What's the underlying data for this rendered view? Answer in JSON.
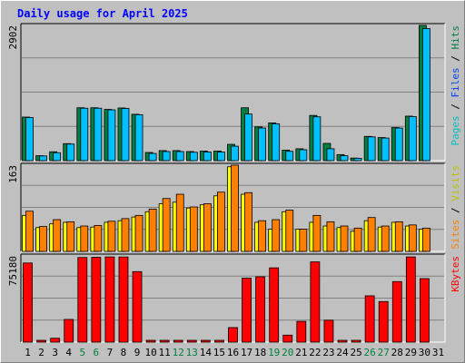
{
  "chart_data": {
    "type": "bar",
    "title": "Daily usage for April 2025",
    "categories": [
      "1",
      "2",
      "3",
      "4",
      "5",
      "6",
      "7",
      "8",
      "9",
      "10",
      "11",
      "12",
      "13",
      "14",
      "15",
      "16",
      "17",
      "18",
      "19",
      "20",
      "21",
      "22",
      "23",
      "24",
      "25",
      "26",
      "27",
      "28",
      "29",
      "30",
      "31"
    ],
    "weekend_days": [
      "5",
      "6",
      "12",
      "13",
      "19",
      "20",
      "26",
      "27"
    ],
    "colors": {
      "background": "#c0c0c0",
      "panel": "#c0c0c0",
      "title": "#0000ff",
      "hits": "#008040",
      "files": "#00c0ff",
      "pages": "#00ffff",
      "visits": "#ff8000",
      "sites": "#ffff00",
      "kbytes": "#ff0000",
      "tick_normal": "#000000",
      "tick_weekend": "#008040"
    },
    "panels": [
      {
        "id": "hits-files-pages",
        "max_label": "2902",
        "ylim": [
          0,
          2902
        ],
        "right_label": [
          {
            "text": "Pages",
            "color": "#00c0c0"
          },
          {
            "text": " / ",
            "color": "#000000"
          },
          {
            "text": "Files",
            "color": "#0040ff"
          },
          {
            "text": " / ",
            "color": "#000000"
          },
          {
            "text": "Hits",
            "color": "#008040"
          }
        ],
        "series": [
          {
            "name": "Hits",
            "color": "#008040",
            "values": [
              935,
              105,
              190,
              365,
              1135,
              1135,
              1100,
              1130,
              995,
              175,
              215,
              215,
              195,
              205,
              205,
              350,
              1135,
              725,
              810,
              225,
              255,
              970,
              370,
              130,
              55,
              520,
              495,
              710,
              955,
              2902,
              0
            ]
          },
          {
            "name": "Files",
            "color": "#00c0ff",
            "values": [
              925,
              100,
              170,
              355,
              1125,
              1125,
              1090,
              1120,
              985,
              155,
              195,
              195,
              180,
              185,
              185,
              310,
              1000,
              700,
              790,
              200,
              235,
              940,
              255,
              105,
              50,
              510,
              485,
              700,
              945,
              2835,
              0
            ]
          }
        ]
      },
      {
        "id": "visits-sites",
        "max_label": "163",
        "ylim": [
          0,
          163
        ],
        "right_label": [
          {
            "text": "Sites",
            "color": "#ff8000"
          },
          {
            "text": " / ",
            "color": "#000000"
          },
          {
            "text": "Visits",
            "color": "#c0c000"
          }
        ],
        "series": [
          {
            "name": "Visits",
            "color": "#ffff00",
            "values": [
              68,
              45,
              52,
              55,
              45,
              46,
              55,
              58,
              65,
              75,
              90,
              93,
              82,
              88,
              105,
              160,
              108,
              55,
              42,
              75,
              42,
              55,
              48,
              45,
              38,
              58,
              46,
              55,
              48,
              42,
              0
            ]
          },
          {
            "name": "Sites",
            "color": "#ff8000",
            "values": [
              76,
              47,
              60,
              56,
              48,
              49,
              57,
              62,
              68,
              80,
              100,
              108,
              84,
              90,
              112,
              163,
              111,
              58,
              60,
              78,
              42,
              68,
              56,
              48,
              44,
              64,
              48,
              56,
              50,
              44,
              0
            ]
          }
        ]
      },
      {
        "id": "kbytes",
        "max_label": "75180",
        "ylim": [
          0,
          75180
        ],
        "right_label": [
          {
            "text": "KBytes",
            "color": "#ff0000"
          }
        ],
        "series": [
          {
            "name": "KBytes",
            "color": "#ff0000",
            "values": [
              69000,
              900,
              3400,
              19800,
              73800,
              74000,
              74300,
              74300,
              61500,
              800,
              800,
              1000,
              800,
              1300,
              1400,
              12700,
              55800,
              57000,
              64800,
              6100,
              18100,
              70000,
              19100,
              1000,
              800,
              40400,
              35400,
              52800,
              74300,
              55400,
              0
            ]
          }
        ]
      }
    ]
  }
}
